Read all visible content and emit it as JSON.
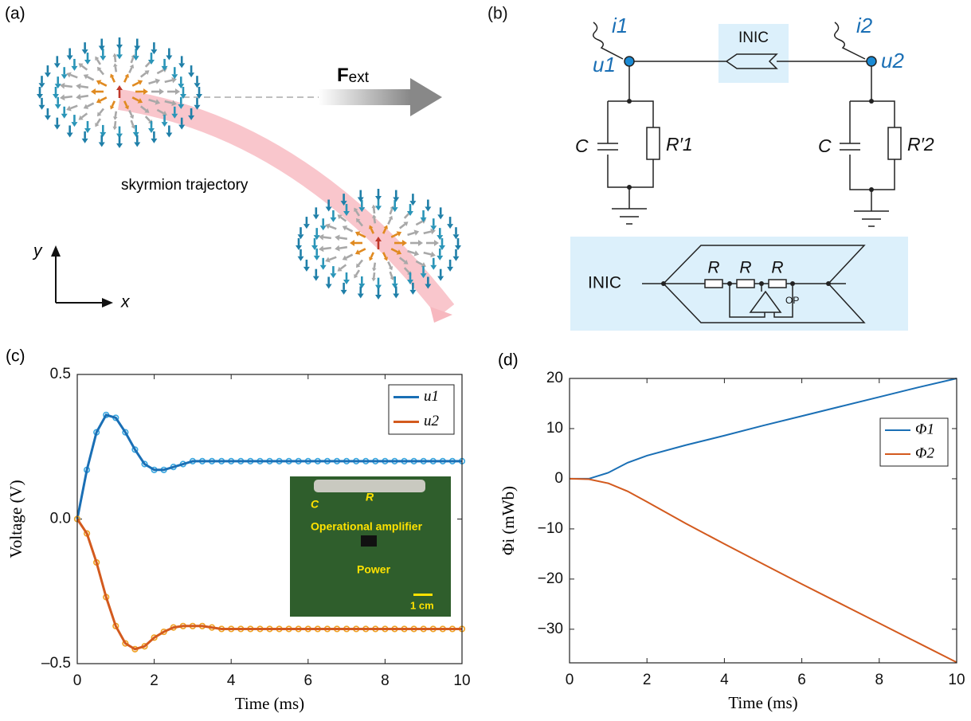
{
  "panels": {
    "a": {
      "label": "(a)",
      "force": "F",
      "force_sub": "ext",
      "trajectory": "skyrmion trajectory",
      "y_axis": "y",
      "x_axis": "x"
    },
    "b": {
      "label": "(b)",
      "current1": "i1",
      "current2": "i2",
      "node1": "u1",
      "node2": "u2",
      "inic": "INIC",
      "cap1": "C",
      "res1": "R′1",
      "cap2": "C",
      "res2": "R′2",
      "inic_detail": "INIC",
      "r1": "R",
      "r2": "R",
      "r3": "R",
      "op": "OP"
    }
  },
  "chart_data": [
    {
      "type": "line",
      "panel_label": "(c)",
      "xlabel": "Time (ms)",
      "ylabel": "Voltage (V)",
      "xlim": [
        0,
        10
      ],
      "ylim": [
        -0.5,
        0.5
      ],
      "xticks": [
        0,
        2,
        4,
        6,
        8,
        10
      ],
      "yticks": [
        {
          "value": -0.5,
          "label": "–0.5"
        },
        {
          "value": 0,
          "label": "0.0"
        },
        0.5
      ],
      "legend": "northeast",
      "grid": false,
      "x": [
        0,
        0.25,
        0.5,
        0.75,
        1,
        1.25,
        1.5,
        1.75,
        2,
        2.25,
        2.5,
        2.75,
        3,
        3.25,
        3.5,
        3.75,
        4,
        4.25,
        4.5,
        4.75,
        5,
        5.25,
        5.5,
        5.75,
        6,
        6.25,
        6.5,
        6.75,
        7,
        7.25,
        7.5,
        7.75,
        8,
        8.25,
        8.5,
        8.75,
        9,
        9.25,
        9.5,
        9.75,
        10
      ],
      "series": [
        {
          "name": "u1",
          "color": "#1a6fb5",
          "marker_color": "#3aa7e0",
          "values": [
            0,
            0.17,
            0.3,
            0.36,
            0.35,
            0.3,
            0.24,
            0.19,
            0.17,
            0.17,
            0.18,
            0.19,
            0.2,
            0.2,
            0.2,
            0.2,
            0.2,
            0.2,
            0.2,
            0.2,
            0.2,
            0.2,
            0.2,
            0.2,
            0.2,
            0.2,
            0.2,
            0.2,
            0.2,
            0.2,
            0.2,
            0.2,
            0.2,
            0.2,
            0.2,
            0.2,
            0.2,
            0.2,
            0.2,
            0.2,
            0.2
          ]
        },
        {
          "name": "u2",
          "color": "#d35a1e",
          "marker_color": "#f0a020",
          "values": [
            0,
            -0.05,
            -0.15,
            -0.27,
            -0.37,
            -0.43,
            -0.45,
            -0.44,
            -0.41,
            -0.39,
            -0.375,
            -0.37,
            -0.37,
            -0.37,
            -0.375,
            -0.38,
            -0.38,
            -0.38,
            -0.38,
            -0.38,
            -0.38,
            -0.38,
            -0.38,
            -0.38,
            -0.38,
            -0.38,
            -0.38,
            -0.38,
            -0.38,
            -0.38,
            -0.38,
            -0.38,
            -0.38,
            -0.38,
            -0.38,
            -0.38,
            -0.38,
            -0.38,
            -0.38,
            -0.38,
            -0.38
          ]
        }
      ],
      "inset": {
        "capacitor": "C",
        "resistor": "R",
        "chip": "Operational amplifier",
        "power": "Power",
        "scale": "1 cm"
      }
    },
    {
      "type": "line",
      "panel_label": "(d)",
      "xlabel": "Time (ms)",
      "ylabel": "Φi (mWb)",
      "xlim": [
        0,
        10
      ],
      "ylim": [
        -36.7,
        20
      ],
      "xticks": [
        0,
        2,
        4,
        6,
        8,
        10
      ],
      "yticks": [
        {
          "value": -30,
          "label": "−30"
        },
        {
          "value": -20,
          "label": "−20"
        },
        {
          "value": -10,
          "label": "−10"
        },
        0,
        10,
        20
      ],
      "legend": "northeast",
      "grid": false,
      "x": [
        0,
        0.5,
        1,
        1.5,
        2,
        3,
        4,
        5,
        6,
        7,
        8,
        9,
        10
      ],
      "series": [
        {
          "name": "Φ1",
          "color": "#1a6fb5",
          "values": [
            0,
            0,
            1.2,
            3.2,
            4.6,
            6.7,
            8.6,
            10.6,
            12.5,
            14.4,
            16.3,
            18.2,
            20
          ]
        },
        {
          "name": "Φ2",
          "color": "#d35a1e",
          "values": [
            0,
            -0.1,
            -0.9,
            -2.5,
            -4.6,
            -8.9,
            -13,
            -17,
            -21,
            -24.9,
            -28.8,
            -32.7,
            -36.6
          ]
        }
      ]
    }
  ]
}
